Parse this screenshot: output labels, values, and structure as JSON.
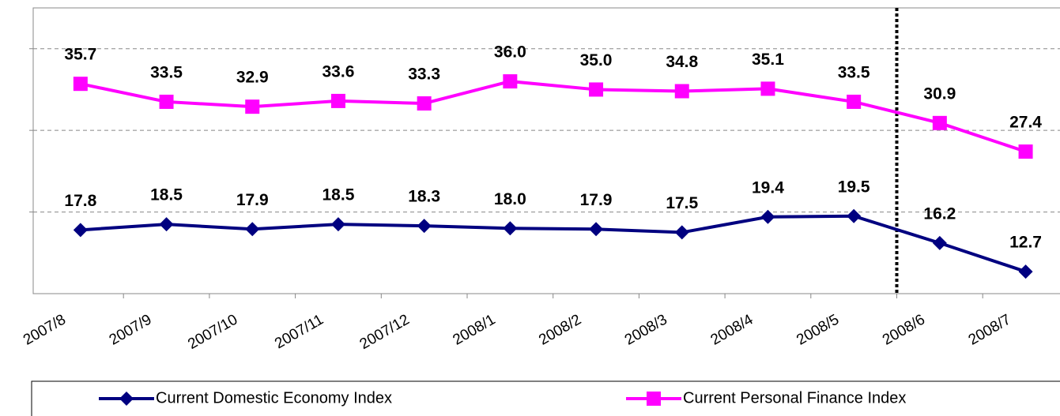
{
  "chart_data": {
    "type": "line",
    "categories": [
      "2007/8",
      "2007/9",
      "2007/10",
      "2007/11",
      "2007/12",
      "2008/1",
      "2008/2",
      "2008/3",
      "2008/4",
      "2008/5",
      "2008/6",
      "2008/7"
    ],
    "series": [
      {
        "name": "Current Domestic Economy Index",
        "color": "#000080",
        "marker": "diamond",
        "values": [
          17.8,
          18.5,
          17.9,
          18.5,
          18.3,
          18.0,
          17.9,
          17.5,
          19.4,
          19.5,
          16.2,
          12.7
        ],
        "value_labels": [
          "17.8",
          "18.5",
          "17.9",
          "18.5",
          "18.3",
          "18.0",
          "17.9",
          "17.5",
          "19.4",
          "19.5",
          "16.2",
          "12.7"
        ]
      },
      {
        "name": "Current Personal Finance Index",
        "color": "#ff00ff",
        "marker": "square",
        "values": [
          35.7,
          33.5,
          32.9,
          33.6,
          33.3,
          36.0,
          35.0,
          34.8,
          35.1,
          33.5,
          30.9,
          27.4
        ],
        "value_labels": [
          "35.7",
          "33.5",
          "32.9",
          "33.6",
          "33.3",
          "36.0",
          "35.0",
          "34.8",
          "35.1",
          "33.5",
          "30.9",
          "27.4"
        ]
      }
    ],
    "ylim": [
      10,
      45
    ],
    "yticks": [
      20,
      30,
      40
    ],
    "grid": true,
    "legend": "bottom"
  }
}
